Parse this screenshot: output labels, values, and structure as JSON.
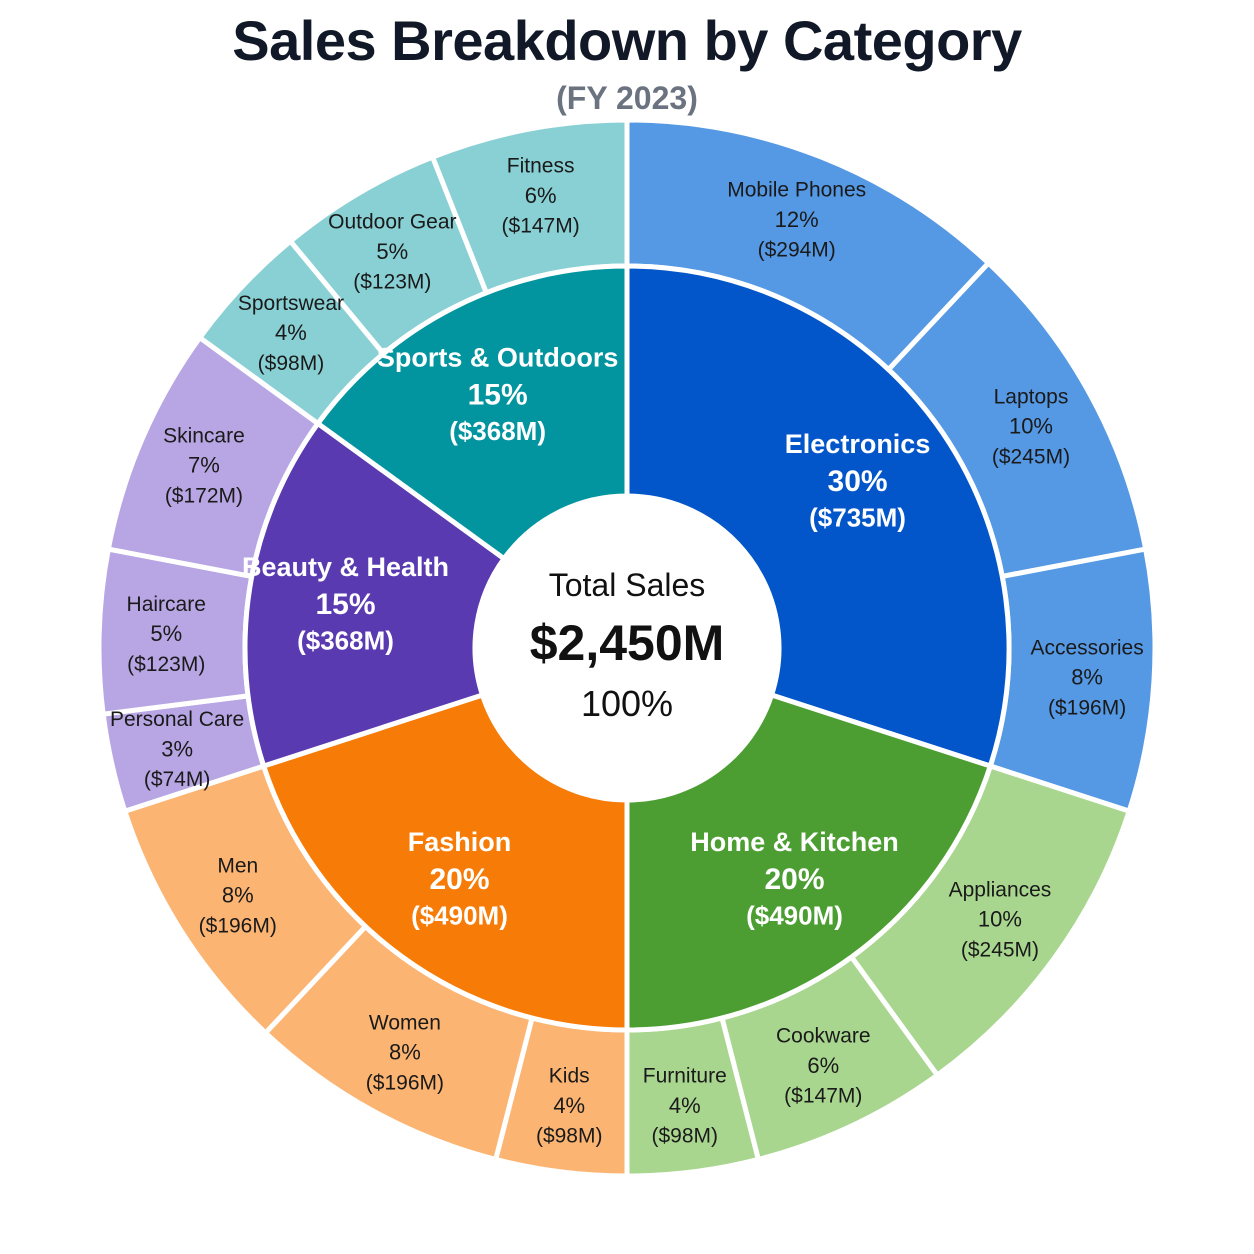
{
  "chart_data": {
    "type": "sunburst",
    "title": "Sales Breakdown by Category",
    "subtitle": "(FY 2023)",
    "center": {
      "label": "Total Sales",
      "value": "$2,450M",
      "percent": "100%"
    },
    "categories": [
      {
        "name": "Electronics",
        "percent": "30%",
        "value": "($735M)",
        "share": 30,
        "color": "#0356c9",
        "children": [
          {
            "name": "Mobile Phones",
            "percent": "12%",
            "value": "($294M)",
            "share": 12
          },
          {
            "name": "Laptops",
            "percent": "10%",
            "value": "($245M)",
            "share": 10
          },
          {
            "name": "Accessories",
            "percent": "8%",
            "value": "($196M)",
            "share": 8
          }
        ]
      },
      {
        "name": "Home & Kitchen",
        "percent": "20%",
        "value": "($490M)",
        "share": 20,
        "color": "#4c9e32",
        "children": [
          {
            "name": "Appliances",
            "percent": "10%",
            "value": "($245M)",
            "share": 10
          },
          {
            "name": "Cookware",
            "percent": "6%",
            "value": "($147M)",
            "share": 6
          },
          {
            "name": "Furniture",
            "percent": "4%",
            "value": "($98M)",
            "share": 4
          }
        ]
      },
      {
        "name": "Fashion",
        "percent": "20%",
        "value": "($490M)",
        "share": 20,
        "color": "#f77b07",
        "children": [
          {
            "name": "Kids",
            "percent": "4%",
            "value": "($98M)",
            "share": 4
          },
          {
            "name": "Women",
            "percent": "8%",
            "value": "($196M)",
            "share": 8
          },
          {
            "name": "Men",
            "percent": "8%",
            "value": "($196M)",
            "share": 8
          }
        ]
      },
      {
        "name": "Beauty & Health",
        "percent": "15%",
        "value": "($368M)",
        "share": 15,
        "color": "#5a3ab0",
        "children": [
          {
            "name": "Personal Care",
            "percent": "3%",
            "value": "($74M)",
            "share": 3
          },
          {
            "name": "Haircare",
            "percent": "5%",
            "value": "($123M)",
            "share": 5
          },
          {
            "name": "Skincare",
            "percent": "7%",
            "value": "($172M)",
            "share": 7
          }
        ]
      },
      {
        "name": "Sports & Outdoors",
        "percent": "15%",
        "value": "($368M)",
        "share": 15,
        "color": "#03959f",
        "children": [
          {
            "name": "Sportswear",
            "percent": "4%",
            "value": "($98M)",
            "share": 4
          },
          {
            "name": "Outdoor Gear",
            "percent": "5%",
            "value": "($123M)",
            "share": 5
          },
          {
            "name": "Fitness",
            "percent": "6%",
            "value": "($147M)",
            "share": 6
          }
        ]
      }
    ],
    "outer_colors": {
      "Electronics": "#5599e4",
      "Home & Kitchen": "#a9d68f",
      "Fashion": "#fbb472",
      "Beauty & Health": "#b7a6e3",
      "Sports & Outdoors": "#89d0d4"
    }
  }
}
